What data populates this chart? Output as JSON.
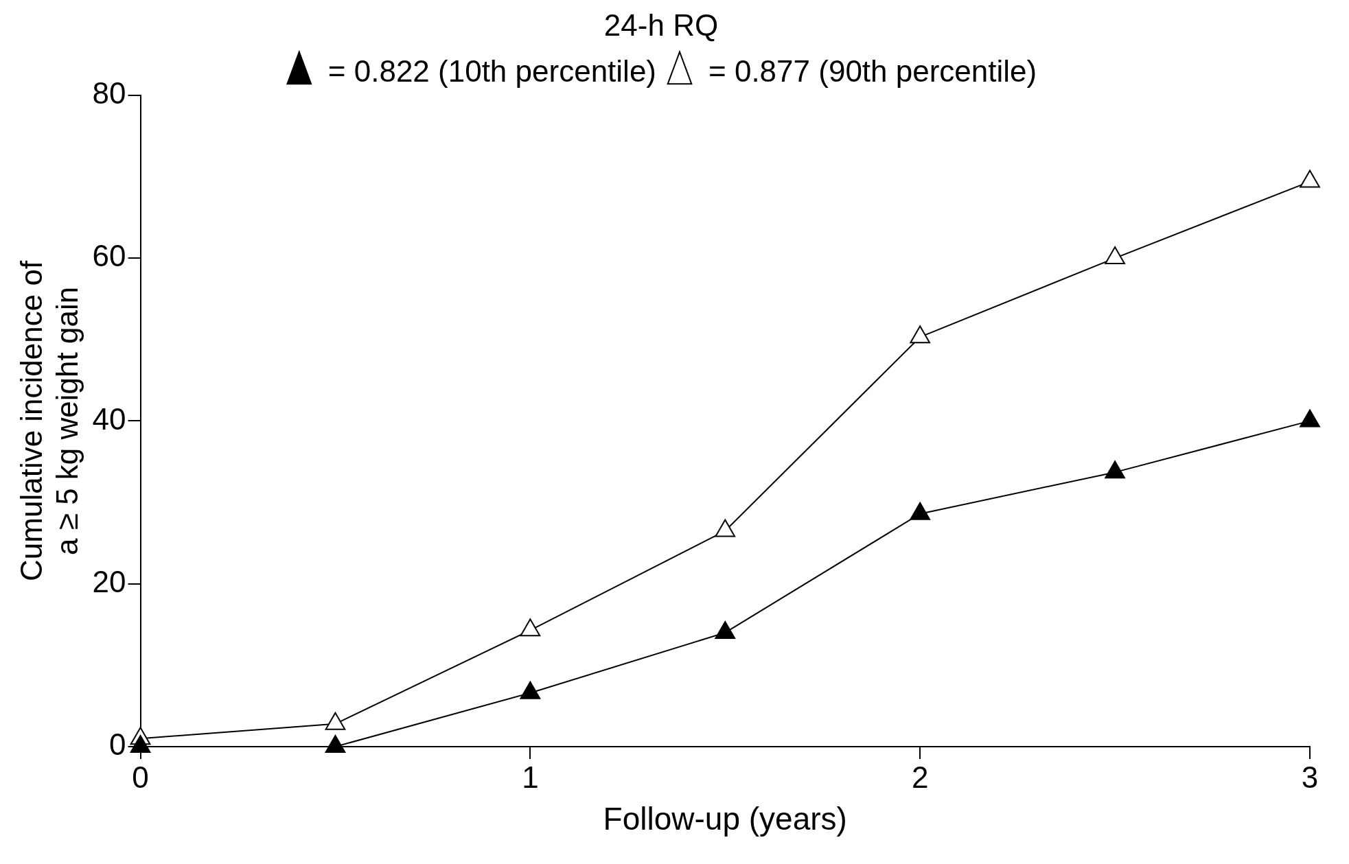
{
  "chart_data": {
    "type": "line",
    "xlabel": "Follow-up (years)",
    "ylabel": "Cumulative incidence of\na ≥ 5 kg weight gain",
    "legend_title": "24-h RQ",
    "x": [
      0,
      0.5,
      1,
      1.5,
      2,
      2.5,
      3
    ],
    "series": [
      {
        "name": "= 0.822 (10th percentile)",
        "color": "#000000",
        "marker": "triangle",
        "values": [
          0,
          0,
          6.6,
          14,
          28.6,
          33.7,
          40
        ]
      },
      {
        "name": "= 0.877 (90th percentile)",
        "color": "#000000",
        "marker": "triangle-open",
        "values": [
          1,
          2.8,
          14.3,
          26.5,
          50.3,
          60,
          69.4
        ]
      }
    ],
    "xlim": [
      0,
      3
    ],
    "xticks": [
      0,
      1,
      2,
      3
    ],
    "ylim": [
      0,
      80
    ],
    "yticks": [
      0,
      20,
      40,
      60,
      80
    ],
    "grid": false,
    "legend": "top",
    "line_style": "solid"
  }
}
